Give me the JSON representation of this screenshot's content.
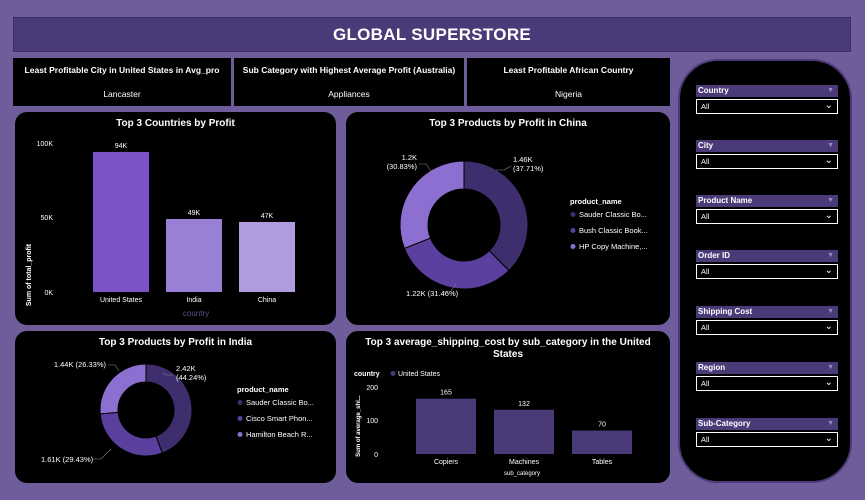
{
  "header": {
    "title": "GLOBAL SUPERSTORE"
  },
  "kpis": [
    {
      "label": "Least Profitable City in United States in Avg_pro",
      "value": "Lancaster"
    },
    {
      "label": "Sub Category with Highest Average Profit (Australia)",
      "value": "Appliances"
    },
    {
      "label": "Least Profitable African Country",
      "value": "Nigeria"
    }
  ],
  "colors": {
    "background": "#6e5d9a",
    "title_bar": "#4b3a78",
    "bar_primary": "#7b52c8",
    "bar_secondary": "#9a7fd6",
    "bar_tertiary": "#b19ce0",
    "donut_dark": "#3f2e6e",
    "donut_mid": "#5a3f9e",
    "donut_light": "#8c6fd0"
  },
  "chart_data": [
    {
      "type": "bar",
      "title": "Top 3 Countries by Profit",
      "xlabel": "country",
      "ylabel": "Sum of total_profit",
      "categories": [
        "United States",
        "India",
        "China"
      ],
      "values": [
        94000,
        49000,
        47000
      ],
      "data_labels": [
        "94K",
        "49K",
        "47K"
      ],
      "yticks": [
        "0K",
        "50K",
        "100K"
      ],
      "ylim": [
        0,
        100000
      ]
    },
    {
      "type": "pie",
      "title": "Top 3 Products by Profit in China",
      "legend_title": "product_name",
      "legend": [
        "Sauder Classic Bo...",
        "Bush Classic Book...",
        "HP Copy Machine,..."
      ],
      "values": [
        1.46,
        1.22,
        1.2
      ],
      "labels": [
        "1.46K (37.71%)",
        "1.22K (31.46%)",
        "1.2K (30.83%)"
      ]
    },
    {
      "type": "pie",
      "title": "Top 3 Products by Profit in India",
      "legend_title": "product_name",
      "legend": [
        "Sauder Classic Bo...",
        "Cisco Smart Phon...",
        "Hamilton Beach R..."
      ],
      "values": [
        2.42,
        1.61,
        1.44
      ],
      "labels": [
        "2.42K (44.24%)",
        "1.61K (29.43%)",
        "1.44K (26.33%)"
      ]
    },
    {
      "type": "bar",
      "title": "Top 3 average_shipping_cost by sub_category in the United States",
      "legend_title": "country",
      "legend": [
        "United States"
      ],
      "xlabel": "sub_category",
      "ylabel": "Sum of average_shi...",
      "categories": [
        "Copiers",
        "Machines",
        "Tables"
      ],
      "values": [
        165,
        132,
        70
      ],
      "data_labels": [
        "165",
        "132",
        "70"
      ],
      "yticks": [
        "0",
        "100",
        "200"
      ],
      "ylim": [
        0,
        200
      ]
    }
  ],
  "slicers": [
    {
      "label": "Country",
      "value": "All"
    },
    {
      "label": "City",
      "value": "All"
    },
    {
      "label": "Product Name",
      "value": "All"
    },
    {
      "label": "Order ID",
      "value": "All"
    },
    {
      "label": "Shipping Cost",
      "value": "All"
    },
    {
      "label": "Region",
      "value": "All"
    },
    {
      "label": "Sub-Category",
      "value": "All"
    }
  ]
}
